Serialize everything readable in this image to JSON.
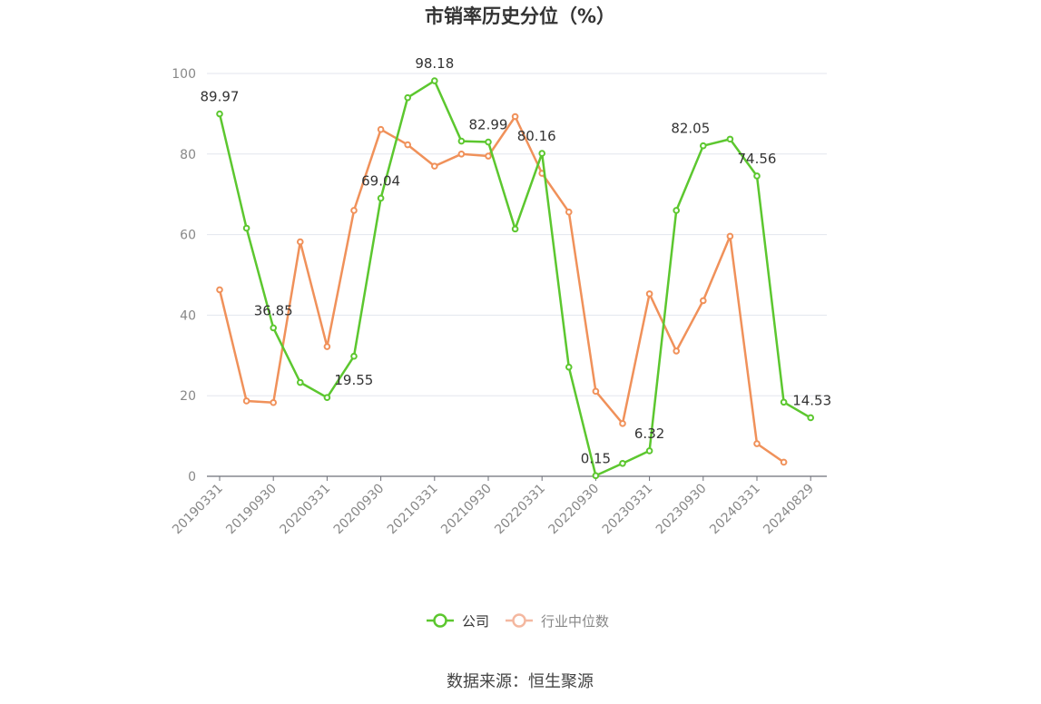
{
  "chart_data": {
    "type": "line",
    "title": "市销率历史分位（%）",
    "source": "数据来源：恒生聚源",
    "ylim": [
      0,
      100
    ],
    "y_ticks": [
      "0",
      "20",
      "40",
      "60",
      "80",
      "100"
    ],
    "x_tick_labels": [
      "20190331",
      "20190930",
      "20200331",
      "20200930",
      "20210331",
      "20210930",
      "20220331",
      "20220930",
      "20230331",
      "20230930",
      "20240331",
      "20240829"
    ],
    "x": [
      "20190331",
      "20190630",
      "20190930",
      "20191231",
      "20200331",
      "20200630",
      "20200930",
      "20201231",
      "20210331",
      "20210630",
      "20210930",
      "20211231",
      "20220331",
      "20220630",
      "20220930",
      "20221231",
      "20230331",
      "20230630",
      "20230930",
      "20231231",
      "20240331",
      "20240630",
      "20240829"
    ],
    "grid": true,
    "legend_position": "bottom",
    "series": [
      {
        "name": "公司",
        "color": "#5cc72f",
        "values": [
          89.97,
          61.6,
          36.85,
          23.3,
          19.55,
          29.8,
          69.04,
          94.0,
          98.18,
          83.2,
          82.99,
          61.4,
          80.16,
          27.1,
          0.15,
          3.2,
          6.32,
          66.0,
          82.05,
          83.7,
          74.56,
          18.4,
          14.53
        ],
        "labels": [
          "89.97",
          "",
          "36.85",
          "",
          "19.55",
          "",
          "69.04",
          "",
          "98.18",
          "",
          "82.99",
          "",
          "80.16",
          "",
          "0.15",
          "",
          "6.32",
          "",
          "82.05",
          "",
          "74.56",
          "",
          "14.53"
        ]
      },
      {
        "name": "行业中位数",
        "color": "#f0915a",
        "values": [
          46.3,
          18.7,
          18.3,
          58.2,
          32.2,
          66.0,
          86.1,
          82.3,
          77.0,
          80.0,
          79.5,
          89.3,
          75.2,
          65.6,
          21.1,
          13.1,
          45.3,
          31.1,
          43.6,
          59.6,
          8.1,
          3.5,
          null
        ]
      }
    ]
  }
}
